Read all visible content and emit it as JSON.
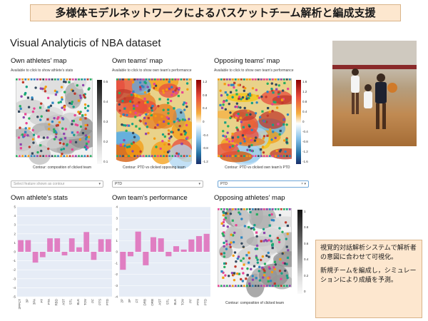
{
  "banner": {
    "text": "多様体モデルネットワークによるバスケットチーム解析と編成支援"
  },
  "app": {
    "title": "Visual Analyticis of NBA dataset"
  },
  "panels": {
    "own_athletes_map": {
      "title": "Own athletes' map",
      "subtitle": "Available to click to show athlete's stats",
      "caption": "Contour: composition of clicked team",
      "colorbar_ticks": [
        "0.5",
        "0.4",
        "0.3",
        "0.2",
        "0.1"
      ]
    },
    "own_teams_map": {
      "title": "Own teams' map",
      "subtitle": "Available to click to show own team's performance",
      "caption": "Contour: PTD vs clicked opposing team",
      "colorbar_ticks": [
        "1.2",
        "0.8",
        "0.4",
        "0",
        "-0.4",
        "-0.8",
        "-1.2"
      ]
    },
    "opposing_teams_map": {
      "title": "Opposing teams' map",
      "subtitle": "Available to click to show own team's performance",
      "caption": "Contour: PTD vs clicked own team's PTD",
      "colorbar_ticks": [
        "1.6",
        "1.2",
        "0.8",
        "0.4",
        "0",
        "-0.4",
        "-0.8",
        "-1.2",
        "-1.6"
      ]
    },
    "opposing_athletes_map": {
      "title": "Opposing athletes' map",
      "caption": "Contour: composition of clicked team",
      "colorbar_ticks": [
        "1",
        "0.8",
        "0.6",
        "0.4",
        "0.2",
        "0"
      ]
    }
  },
  "selects": {
    "feature": {
      "placeholder": "Select feature shown as contour"
    },
    "own_team": {
      "value": "PTD"
    },
    "opposing_team": {
      "value": "PTD"
    }
  },
  "notes": {
    "line1": "視覚的対話解析システムで解析者の意図に合わせて可視化。",
    "line2": "新規チームを編成し，シミュレーションにより成績を予測。"
  },
  "colors": {
    "bar": "#e07ec2",
    "plot_bg": "#e6ecf6",
    "banner_bg": "#fde7cf",
    "accent_border": "#d9b48a"
  },
  "chart_data": [
    {
      "type": "bar",
      "title": "Own athlete's stats",
      "categories": [
        "2PPCT",
        "3P",
        "3PA",
        "FT",
        "FTA",
        "RBD",
        "AST",
        "STL",
        "BLK",
        "TOV",
        "PF",
        "PTS",
        "PTD"
      ],
      "values": [
        1.3,
        1.3,
        -1.2,
        -0.6,
        1.5,
        1.5,
        -0.4,
        1.5,
        0.5,
        2.2,
        -0.9,
        1.4,
        1.4
      ],
      "ylim": [
        -5,
        5
      ],
      "yticks": [
        "5",
        "4",
        "3",
        "2",
        "1",
        "0",
        "-1",
        "-2",
        "-3",
        "-4",
        "-5"
      ]
    },
    {
      "type": "bar",
      "title": "Own team's performance",
      "categories": [
        "2P",
        "3P",
        "FT",
        "DRB",
        "ORB",
        "AST",
        "STL",
        "BLK",
        "TOV",
        "PF",
        "PTS",
        "PTD"
      ],
      "values": [
        -1.6,
        -0.4,
        1.8,
        -1.2,
        1.3,
        1.2,
        -0.4,
        0.5,
        0.2,
        1.1,
        1.4,
        1.6
      ],
      "ylim": [
        -4,
        4
      ],
      "yticks": [
        "4",
        "3",
        "2",
        "1",
        "0",
        "-1",
        "-2",
        "-3",
        "-4"
      ]
    }
  ]
}
